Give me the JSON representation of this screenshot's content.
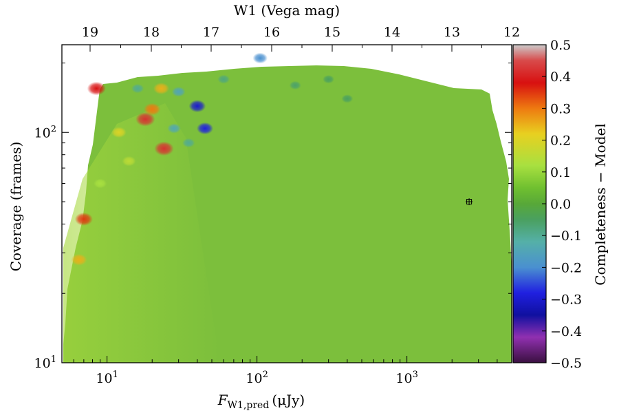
{
  "chart_data": {
    "type": "heatmap",
    "xlabel": "F",
    "xlabel_sub": "W1,pred",
    "xlabel_unit": "(μJy)",
    "ylabel": "Coverage (frames)",
    "top_axis_label": "W1 (Vega mag)",
    "colorbar_label": "Completeness − Model",
    "x_scale": "log",
    "y_scale": "log",
    "xlim": [
      5,
      5000
    ],
    "ylim": [
      10,
      240
    ],
    "x_ticks": [
      {
        "value": 10,
        "base": "10",
        "exp": "1"
      },
      {
        "value": 100,
        "base": "10",
        "exp": "2"
      },
      {
        "value": 1000,
        "base": "10",
        "exp": "3"
      }
    ],
    "y_ticks": [
      {
        "value": 10,
        "base": "10",
        "exp": "1"
      },
      {
        "value": 100,
        "base": "10",
        "exp": "2"
      }
    ],
    "top_ticks": [
      {
        "value": 19,
        "label": "19"
      },
      {
        "value": 18,
        "label": "18"
      },
      {
        "value": 17,
        "label": "17"
      },
      {
        "value": 16,
        "label": "16"
      },
      {
        "value": 15,
        "label": "15"
      },
      {
        "value": 14,
        "label": "14"
      },
      {
        "value": 13,
        "label": "13"
      },
      {
        "value": 12,
        "label": "12"
      }
    ],
    "colorbar": {
      "range": [
        -0.5,
        0.5
      ],
      "ticks": [
        "0.5",
        "0.4",
        "0.3",
        "0.2",
        "0.1",
        "0.0",
        "−0.1",
        "−0.2",
        "−0.3",
        "−0.4",
        "−0.5"
      ],
      "stops": [
        {
          "v": 0.5,
          "color": "#cccccc"
        },
        {
          "v": 0.45,
          "color": "#d84a4a"
        },
        {
          "v": 0.38,
          "color": "#d81010"
        },
        {
          "v": 0.3,
          "color": "#ee7a10"
        },
        {
          "v": 0.22,
          "color": "#e8d020"
        },
        {
          "v": 0.12,
          "color": "#a8e040"
        },
        {
          "v": 0.05,
          "color": "#70c030"
        },
        {
          "v": 0.0,
          "color": "#58a838"
        },
        {
          "v": -0.05,
          "color": "#4aa060"
        },
        {
          "v": -0.12,
          "color": "#55b0a8"
        },
        {
          "v": -0.2,
          "color": "#4a90d0"
        },
        {
          "v": -0.28,
          "color": "#2020e0"
        },
        {
          "v": -0.35,
          "color": "#1010a0"
        },
        {
          "v": -0.42,
          "color": "#9030b0"
        },
        {
          "v": -0.5,
          "color": "#3a1040"
        }
      ]
    },
    "background_value_color": "#7cbf3c",
    "hotspots": [
      {
        "x": 18,
        "y": 114,
        "v": 0.42
      },
      {
        "x": 24,
        "y": 85,
        "v": 0.42
      },
      {
        "x": 20,
        "y": 126,
        "v": 0.3
      },
      {
        "x": 23,
        "y": 155,
        "v": 0.25
      },
      {
        "x": 8.5,
        "y": 155,
        "v": 0.38
      },
      {
        "x": 7,
        "y": 42,
        "v": 0.35
      },
      {
        "x": 6.5,
        "y": 28,
        "v": 0.25
      },
      {
        "x": 12,
        "y": 100,
        "v": 0.2
      },
      {
        "x": 14,
        "y": 75,
        "v": 0.15
      },
      {
        "x": 9,
        "y": 60,
        "v": 0.12
      },
      {
        "x": 40,
        "y": 130,
        "v": -0.3
      },
      {
        "x": 45,
        "y": 104,
        "v": -0.28
      },
      {
        "x": 30,
        "y": 150,
        "v": -0.15
      },
      {
        "x": 28,
        "y": 104,
        "v": -0.14
      },
      {
        "x": 35,
        "y": 90,
        "v": -0.1
      },
      {
        "x": 16,
        "y": 155,
        "v": -0.1
      },
      {
        "x": 105,
        "y": 210,
        "v": -0.2
      },
      {
        "x": 60,
        "y": 170,
        "v": -0.08
      },
      {
        "x": 180,
        "y": 160,
        "v": -0.06
      },
      {
        "x": 300,
        "y": 170,
        "v": -0.05
      },
      {
        "x": 400,
        "y": 140,
        "v": -0.05
      }
    ],
    "marker": {
      "x": 2600,
      "y": 50,
      "symbol": "⊞"
    }
  }
}
